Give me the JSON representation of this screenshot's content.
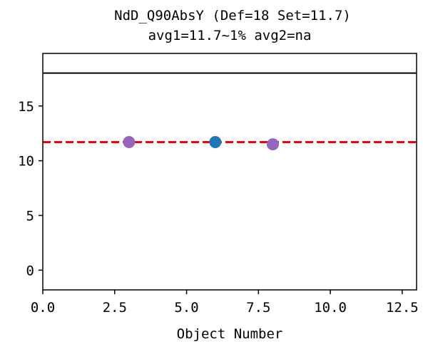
{
  "chart_data": {
    "type": "scatter",
    "title": "NdD_Q90AbsY (Def=18 Set=11.7)",
    "subtitle": "avg1=11.7~1% avg2=na",
    "xlabel": "Object Number",
    "ylabel": "",
    "xlim": [
      0,
      13
    ],
    "ylim": [
      -1.8,
      19.8
    ],
    "x_ticks": [
      {
        "value": 0,
        "label": "0.0"
      },
      {
        "value": 2.5,
        "label": "2.5"
      },
      {
        "value": 5,
        "label": "5.0"
      },
      {
        "value": 7.5,
        "label": "7.5"
      },
      {
        "value": 10,
        "label": "10.0"
      },
      {
        "value": 12.5,
        "label": "12.5"
      }
    ],
    "y_ticks": [
      {
        "value": 0,
        "label": "0"
      },
      {
        "value": 5,
        "label": "5"
      },
      {
        "value": 10,
        "label": "10"
      },
      {
        "value": 15,
        "label": "15"
      }
    ],
    "grid": false,
    "reference_lines": [
      {
        "value": 18,
        "color": "#000000",
        "style": "solid"
      },
      {
        "value": 11.7,
        "color": "#ff0000",
        "style": "dashed"
      }
    ],
    "points": [
      {
        "x": 3,
        "y": 11.7,
        "color": "#9467bd"
      },
      {
        "x": 6,
        "y": 11.7,
        "color": "#1f77b4"
      },
      {
        "x": 8,
        "y": 11.5,
        "color": "#9467bd"
      }
    ]
  }
}
